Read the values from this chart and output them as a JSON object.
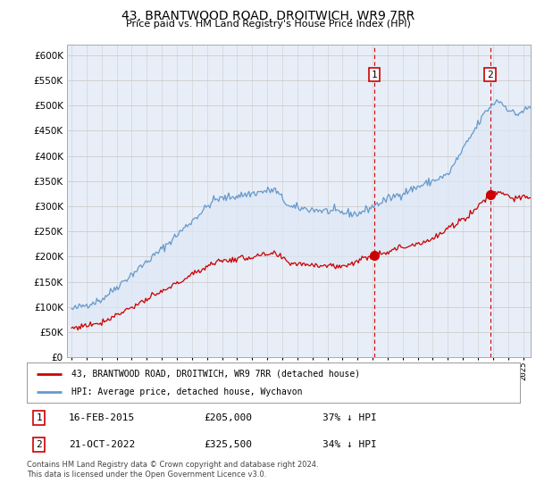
{
  "title": "43, BRANTWOOD ROAD, DROITWICH, WR9 7RR",
  "subtitle": "Price paid vs. HM Land Registry's House Price Index (HPI)",
  "ytick_values": [
    0,
    50000,
    100000,
    150000,
    200000,
    250000,
    300000,
    350000,
    400000,
    450000,
    500000,
    550000,
    600000
  ],
  "ylim": [
    0,
    620000
  ],
  "xlim_start": 1994.7,
  "xlim_end": 2025.5,
  "transaction1": {
    "date_x": 2015.12,
    "price": 205000,
    "label": "1"
  },
  "transaction2": {
    "date_x": 2022.8,
    "price": 325500,
    "label": "2"
  },
  "legend_line1": "43, BRANTWOOD ROAD, DROITWICH, WR9 7RR (detached house)",
  "legend_line2": "HPI: Average price, detached house, Wychavon",
  "table_row1": [
    "1",
    "16-FEB-2015",
    "£205,000",
    "37% ↓ HPI"
  ],
  "table_row2": [
    "2",
    "21-OCT-2022",
    "£325,500",
    "34% ↓ HPI"
  ],
  "footnote": "Contains HM Land Registry data © Crown copyright and database right 2024.\nThis data is licensed under the Open Government Licence v3.0.",
  "color_red": "#cc0000",
  "color_blue": "#6699cc",
  "color_fill": "#dde8f5",
  "color_vline": "#cc0000",
  "color_grid": "#cccccc",
  "background_plot": "#e8eef8",
  "background_fig": "#ffffff"
}
